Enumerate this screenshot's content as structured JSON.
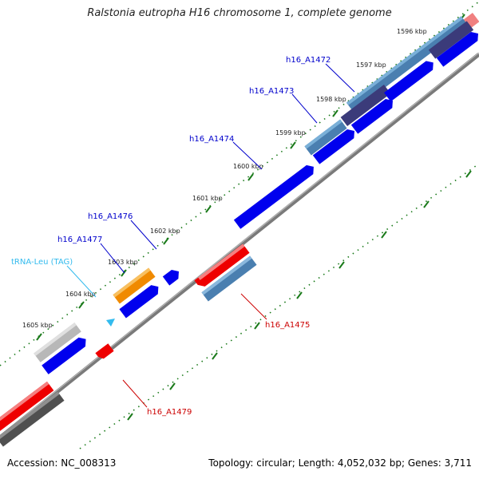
{
  "title": "Ralstonia eutropha H16 chromosome 1, complete genome",
  "footer": {
    "accession_label": "Accession:",
    "accession": "NC_008313",
    "topology_label": "Topology:",
    "topology": "circular",
    "length_label": "Length:",
    "length": "4,052,032 bp",
    "genes_label": "Genes:",
    "genes": "3,711"
  },
  "kbp_ticks": [
    "1596 kbp",
    "1597 kbp",
    "1598 kbp",
    "1599 kbp",
    "1600 kbp",
    "1601 kbp",
    "1602 kbp",
    "1603 kbp",
    "1604 kbp",
    "1605 kbp"
  ],
  "gene_labels": {
    "a1472": "h16_A1472",
    "a1473": "h16_A1473",
    "a1474": "h16_A1474",
    "a1476": "h16_A1476",
    "a1477": "h16_A1477",
    "trna": "tRNA-Leu (TAG)",
    "a1475": "h16_A1475",
    "a1479": "h16_A1479"
  },
  "colors": {
    "forward_gene": "#0000ee",
    "reverse_gene": "#ee0000",
    "trna": "#33bbee",
    "orange_feature": "#f08a00",
    "steel_feature": "#4a7fb0",
    "grey_feature": "#bbbbbb",
    "dark_grey_feature": "#555555",
    "backbone": "#777777",
    "tick_marks": "#1a7a1a",
    "label_forward": "#0000cc",
    "label_reverse": "#cc0000",
    "label_trna": "#33bbee"
  }
}
